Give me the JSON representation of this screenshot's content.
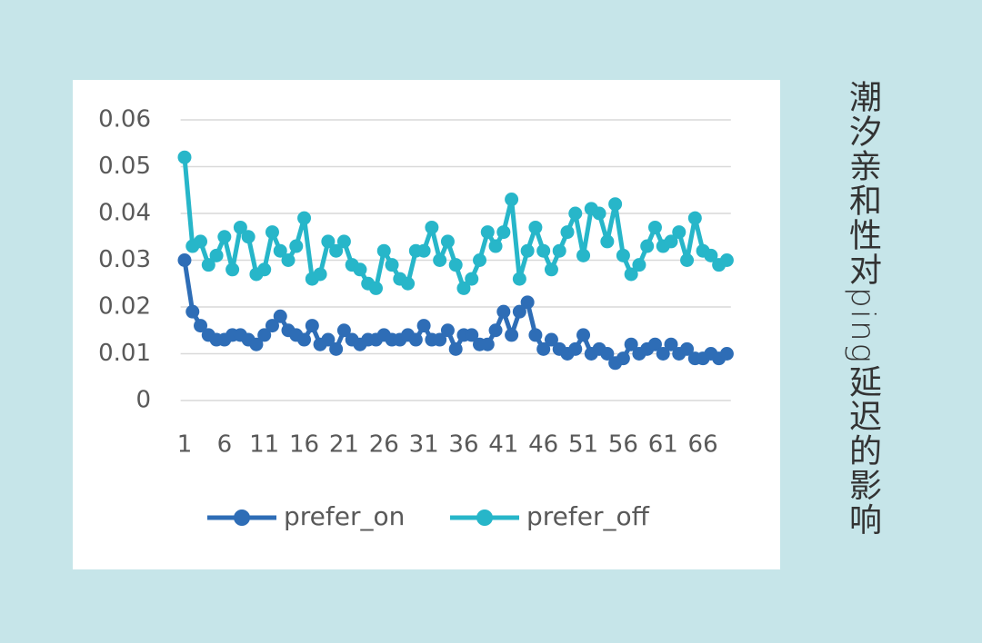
{
  "chart_data": {
    "type": "line",
    "title": "潮汐亲和性对ping延迟的影响",
    "categories": [
      1,
      null,
      null,
      null,
      null,
      6,
      null,
      null,
      null,
      null,
      11,
      null,
      null,
      null,
      null,
      16,
      null,
      null,
      null,
      null,
      21,
      null,
      null,
      null,
      null,
      26,
      null,
      null,
      null,
      null,
      31,
      null,
      null,
      null,
      null,
      36,
      null,
      null,
      null,
      null,
      41,
      null,
      null,
      null,
      null,
      46,
      null,
      null,
      null,
      null,
      51,
      null,
      null,
      null,
      null,
      56,
      null,
      null,
      null,
      null,
      61,
      null,
      null,
      null,
      null,
      66,
      null,
      null,
      null
    ],
    "series": [
      {
        "name": "prefer_on",
        "color": "#2e6db6",
        "values": [
          0.03,
          0.019,
          0.016,
          0.014,
          0.013,
          0.013,
          0.014,
          0.014,
          0.013,
          0.012,
          0.014,
          0.016,
          0.018,
          0.015,
          0.014,
          0.013,
          0.016,
          0.012,
          0.013,
          0.011,
          0.015,
          0.013,
          0.012,
          0.013,
          0.013,
          0.014,
          0.013,
          0.013,
          0.014,
          0.013,
          0.016,
          0.013,
          0.013,
          0.015,
          0.011,
          0.014,
          0.014,
          0.012,
          0.012,
          0.015,
          0.019,
          0.014,
          0.019,
          0.021,
          0.014,
          0.011,
          0.013,
          0.011,
          0.01,
          0.011,
          0.014,
          0.01,
          0.011,
          0.01,
          0.008,
          0.009,
          0.012,
          0.01,
          0.011,
          0.012,
          0.01,
          0.012,
          0.01,
          0.011,
          0.009,
          0.009,
          0.01,
          0.009,
          0.01
        ]
      },
      {
        "name": "prefer_off",
        "color": "#27b6c9",
        "values": [
          0.052,
          0.033,
          0.034,
          0.029,
          0.031,
          0.035,
          0.028,
          0.037,
          0.035,
          0.027,
          0.028,
          0.036,
          0.032,
          0.03,
          0.033,
          0.039,
          0.026,
          0.027,
          0.034,
          0.032,
          0.034,
          0.029,
          0.028,
          0.025,
          0.024,
          0.032,
          0.029,
          0.026,
          0.025,
          0.032,
          0.032,
          0.037,
          0.03,
          0.034,
          0.029,
          0.024,
          0.026,
          0.03,
          0.036,
          0.033,
          0.036,
          0.043,
          0.026,
          0.032,
          0.037,
          0.032,
          0.028,
          0.032,
          0.036,
          0.04,
          0.031,
          0.041,
          0.04,
          0.034,
          0.042,
          0.031,
          0.027,
          0.029,
          0.033,
          0.037,
          0.033,
          0.034,
          0.036,
          0.03,
          0.039,
          0.032,
          0.031,
          0.029,
          0.03
        ]
      }
    ],
    "ylim": [
      0,
      0.06
    ],
    "yticks": [
      0,
      0.01,
      0.02,
      0.03,
      0.04,
      0.05,
      0.06
    ],
    "grid": true,
    "legend": "bottom"
  }
}
